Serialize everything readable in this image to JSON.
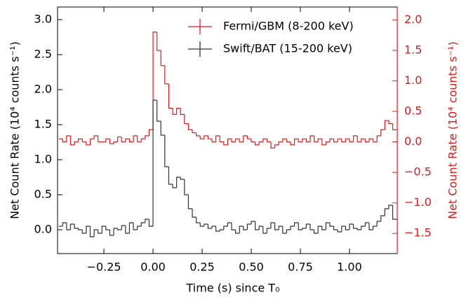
{
  "chart_data": {
    "type": "step",
    "xlabel": "Time (s) since T₀",
    "ylabel": "Net Count Rate (10⁴ counts s⁻¹)",
    "y2label": "Net Count Rate (10⁴ counts s⁻¹)",
    "legend": "upper right",
    "x": [
      -0.48,
      -0.46,
      -0.44,
      -0.42,
      -0.4,
      -0.38,
      -0.36,
      -0.34,
      -0.32,
      -0.3,
      -0.28,
      -0.26,
      -0.24,
      -0.22,
      -0.2,
      -0.18,
      -0.16,
      -0.14,
      -0.12,
      -0.1,
      -0.08,
      -0.06,
      -0.04,
      -0.02,
      0,
      0.02,
      0.04,
      0.06,
      0.08,
      0.1,
      0.12,
      0.14,
      0.16,
      0.18,
      0.2,
      0.22,
      0.24,
      0.26,
      0.28,
      0.3,
      0.32,
      0.34,
      0.36,
      0.38,
      0.4,
      0.42,
      0.44,
      0.46,
      0.48,
      0.5,
      0.52,
      0.54,
      0.56,
      0.58,
      0.6,
      0.62,
      0.64,
      0.66,
      0.68,
      0.7,
      0.72,
      0.74,
      0.76,
      0.78,
      0.8,
      0.82,
      0.84,
      0.86,
      0.88,
      0.9,
      0.92,
      0.94,
      0.96,
      0.98,
      1,
      1.02,
      1.04,
      1.06,
      1.08,
      1.1,
      1.12,
      1.14,
      1.16,
      1.18,
      1.2,
      1.22
    ],
    "series": [
      {
        "name": "Fermi/GBM (8-200 keV)",
        "color": "#e41a1c",
        "axis": "y2",
        "values": [
          0.05,
          0.0,
          0.1,
          -0.05,
          0.0,
          0.05,
          0.0,
          -0.05,
          0.05,
          0.1,
          0.0,
          0.0,
          0.05,
          -0.03,
          0.0,
          0.08,
          0.0,
          0.05,
          0.0,
          0.1,
          0.0,
          0.05,
          0.1,
          0.2,
          1.8,
          1.5,
          1.25,
          0.95,
          0.55,
          0.45,
          0.55,
          0.45,
          0.3,
          0.2,
          0.15,
          0.1,
          0.05,
          0.1,
          0.05,
          0.0,
          0.1,
          0.0,
          -0.05,
          0.05,
          0.0,
          0.05,
          0.0,
          0.1,
          0.05,
          0.0,
          -0.05,
          0.0,
          0.05,
          0.0,
          -0.1,
          -0.05,
          0.0,
          0.05,
          0.0,
          -0.05,
          0.05,
          0.0,
          0.05,
          0.0,
          0.1,
          0.0,
          0.05,
          -0.05,
          0.0,
          0.05,
          0.0,
          0.05,
          0.0,
          0.05,
          0.0,
          0.1,
          0.0,
          0.05,
          0.0,
          0.05,
          0.0,
          0.1,
          0.2,
          0.35,
          0.3,
          0.2
        ]
      },
      {
        "name": "Swift/BAT (15-200 keV)",
        "color": "#333333",
        "values": [
          0.05,
          0.1,
          0.0,
          0.08,
          0.02,
          0.0,
          -0.05,
          0.05,
          -0.1,
          0.0,
          -0.05,
          0.05,
          0.0,
          -0.08,
          0.02,
          0.0,
          0.06,
          -0.05,
          0.1,
          0.0,
          0.05,
          0.1,
          0.15,
          0.05,
          1.85,
          1.55,
          1.35,
          0.9,
          0.65,
          0.6,
          0.75,
          0.72,
          0.5,
          0.3,
          0.18,
          0.1,
          0.05,
          0.08,
          0.02,
          0.05,
          -0.02,
          0.0,
          0.05,
          0.1,
          0.0,
          -0.05,
          0.05,
          0.0,
          0.08,
          0.12,
          0.0,
          0.05,
          -0.05,
          0.02,
          0.1,
          0.0,
          0.05,
          -0.05,
          0.0,
          0.05,
          0.1,
          0.0,
          0.02,
          0.08,
          0.0,
          -0.05,
          0.05,
          0.0,
          0.1,
          0.05,
          0.0,
          -0.03,
          0.05,
          0.0,
          0.08,
          0.02,
          0.0,
          0.05,
          0.1,
          0.0,
          0.05,
          0.12,
          0.2,
          0.3,
          0.35,
          0.15
        ]
      }
    ],
    "xlim": [
      -0.486,
      1.243
    ],
    "xticks": [
      {
        "value": -0.25,
        "label": "−0.25"
      },
      {
        "value": 0,
        "label": "0.00"
      },
      {
        "value": 0.25,
        "label": "0.25"
      },
      {
        "value": 0.5,
        "label": "0.50"
      },
      {
        "value": 0.75,
        "label": "0.75"
      },
      {
        "value": 1,
        "label": "1.00"
      }
    ],
    "ylim": [
      -0.34,
      3.18
    ],
    "yticks": [
      {
        "value": 0,
        "label": "0.0"
      },
      0.5,
      {
        "value": 1,
        "label": "1.0"
      },
      1.5,
      {
        "value": 2,
        "label": "2.0"
      },
      2.5,
      {
        "value": 3,
        "label": "3.0"
      }
    ],
    "y2lim": [
      -1.83,
      2.21
    ],
    "y2ticks": [
      {
        "value": -1.5,
        "label": "−1.5"
      },
      {
        "value": -1,
        "label": "−1.0"
      },
      {
        "value": -0.5,
        "label": "−0.5"
      },
      {
        "value": 0,
        "label": "0.0"
      },
      0.5,
      {
        "value": 1,
        "label": "1.0"
      },
      1.5,
      {
        "value": 2,
        "label": "2.0"
      }
    ]
  }
}
